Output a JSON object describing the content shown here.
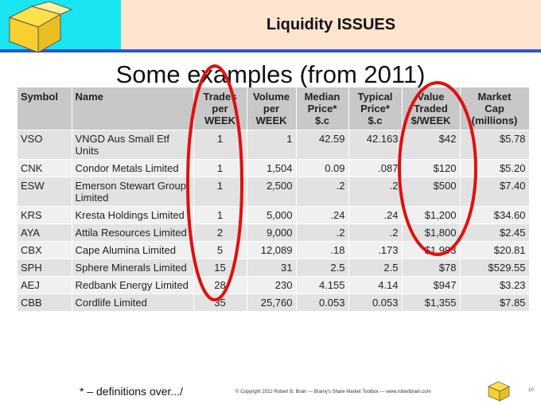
{
  "header": {
    "title": "Liquidity ISSUES",
    "subtitle": "Some examples (from 2011)"
  },
  "table": {
    "columns": [
      [
        "Symbol"
      ],
      [
        "Name"
      ],
      [
        "Trades",
        "per",
        "WEEK"
      ],
      [
        "Volume",
        "per",
        "WEEK"
      ],
      [
        "Median",
        "Price*",
        "$.c"
      ],
      [
        "Typical",
        "Price*",
        "$.c"
      ],
      [
        "Value",
        "Traded",
        "$/WEEK"
      ],
      [
        "Market",
        "Cap",
        "(millions)"
      ]
    ],
    "rows": [
      [
        "VSO",
        "VNGD Aus Small Etf Units",
        "1",
        "1",
        "42.59",
        "42.163",
        "$42",
        "$5.78"
      ],
      [
        "CNK",
        "Condor Metals Limited",
        "1",
        "1,504",
        "0.09",
        ".087",
        "$120",
        "$5.20"
      ],
      [
        "ESW",
        "Emerson Stewart Group Limited",
        "1",
        "2,500",
        ".2",
        ".2",
        "$500",
        "$7.40"
      ],
      [
        "KRS",
        "Kresta Holdings Limited",
        "1",
        "5,000",
        ".24",
        ".24",
        "$1,200",
        "$34.60"
      ],
      [
        "AYA",
        "Attila Resources Limited",
        "2",
        "9,000",
        ".2",
        ".2",
        "$1,800",
        "$2.45"
      ],
      [
        "CBX",
        "Cape Alumina Limited",
        "5",
        "12,089",
        ".18",
        ".173",
        "$1,993",
        "$20.81"
      ],
      [
        "SPH",
        "Sphere Minerals Limited",
        "15",
        "31",
        "2.5",
        "2.5",
        "$78",
        "$529.55"
      ],
      [
        "AEJ",
        "Redbank Energy Limited",
        "28",
        "230",
        "4.155",
        "4.14",
        "$947",
        "$3.23"
      ],
      [
        "CBB",
        "Cordlife Limited",
        "35",
        "25,760",
        "0.053",
        "0.053",
        "$1,355",
        "$7.85"
      ]
    ]
  },
  "footer": {
    "note": "* – definitions over.../",
    "copyright": "© Copyright 2022 Robert B. Brain — Brainy's Share Market Toolbox — www.robertbrain.com",
    "page": "10"
  }
}
